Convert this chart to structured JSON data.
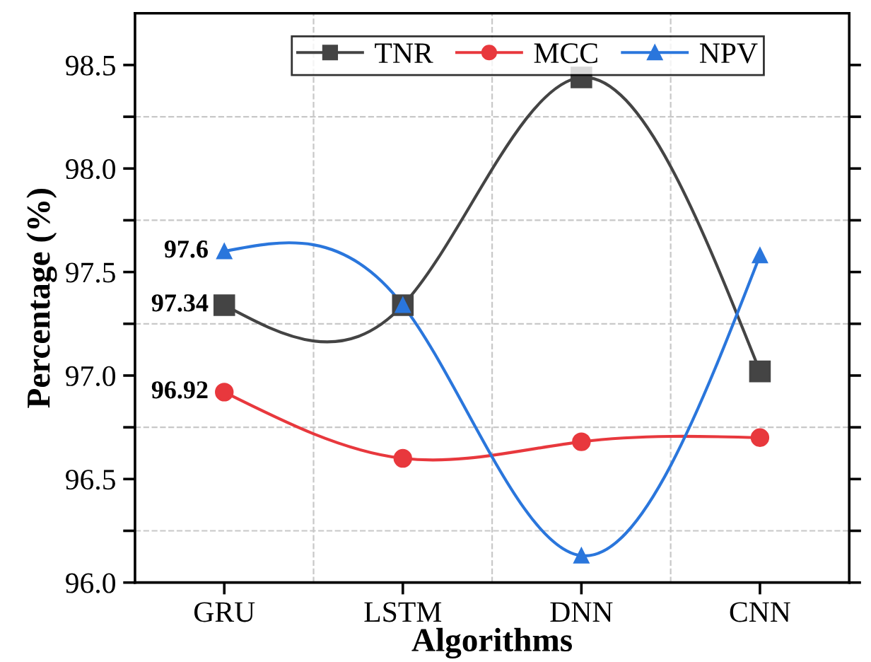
{
  "chart_data": {
    "type": "line",
    "xlabel": "Algorithms",
    "ylabel": "Percentage (%)",
    "categories": [
      "GRU",
      "LSTM",
      "DNN",
      "CNN"
    ],
    "series": [
      {
        "name": "TNR",
        "color": "#444444",
        "marker": "square",
        "values": [
          97.34,
          97.34,
          98.44,
          97.02
        ],
        "value_labels": [
          "97.34",
          null,
          null,
          null
        ]
      },
      {
        "name": "MCC",
        "color": "#e8383d",
        "marker": "circle",
        "values": [
          96.92,
          96.6,
          96.68,
          96.7
        ],
        "value_labels": [
          "96.92",
          null,
          null,
          null
        ]
      },
      {
        "name": "NPV",
        "color": "#2a76dc",
        "marker": "triangle",
        "values": [
          97.6,
          97.34,
          96.13,
          97.58
        ],
        "value_labels": [
          "97.6",
          null,
          null,
          null
        ]
      }
    ],
    "ylim": [
      96.0,
      98.75
    ],
    "yticks": [
      {
        "value": 96.0,
        "label": "96.0"
      },
      {
        "value": 96.25,
        "label": null
      },
      96.5,
      {
        "value": 96.75,
        "label": null
      },
      {
        "value": 97.0,
        "label": "97.0"
      },
      {
        "value": 97.25,
        "label": null
      },
      97.5,
      {
        "value": 97.75,
        "label": null
      },
      {
        "value": 98.0,
        "label": "98.0"
      },
      {
        "value": 98.25,
        "label": null
      },
      98.5
    ],
    "grid": true,
    "legend": "top",
    "line_style": "solid"
  }
}
